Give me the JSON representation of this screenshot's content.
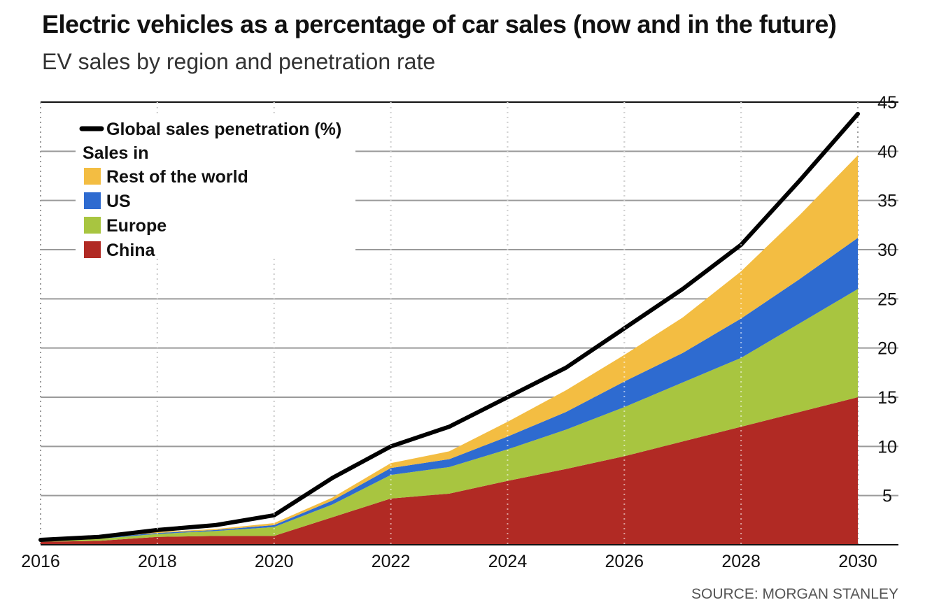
{
  "title": "Electric vehicles as a percentage of car sales (now and in the future)",
  "subtitle": "EV sales by region and penetration rate",
  "source": "SOURCE: MORGAN STANLEY",
  "chart_data": {
    "type": "area",
    "stacked": true,
    "x": [
      2016,
      2017,
      2018,
      2019,
      2020,
      2021,
      2022,
      2023,
      2024,
      2025,
      2026,
      2027,
      2028,
      2029,
      2030
    ],
    "xticks": [
      2016,
      2018,
      2020,
      2022,
      2024,
      2026,
      2028,
      2030
    ],
    "ylim": [
      0,
      45
    ],
    "yticks": [
      5,
      10,
      15,
      20,
      25,
      30,
      35,
      40,
      45
    ],
    "y_axis_position": "right",
    "grid": true,
    "legend_placement": "top-left",
    "legend_heading": "Sales in",
    "series": [
      {
        "name": "China",
        "color": "#b12a24",
        "values": [
          0.3,
          0.4,
          0.8,
          0.9,
          0.9,
          2.8,
          4.7,
          5.2,
          6.5,
          7.7,
          9.0,
          10.5,
          12.0,
          13.5,
          15.0
        ]
      },
      {
        "name": "Europe",
        "color": "#a8c540",
        "values": [
          0.1,
          0.2,
          0.3,
          0.5,
          0.9,
          1.3,
          2.4,
          2.7,
          3.2,
          4.0,
          5.0,
          6.0,
          7.0,
          9.0,
          11.0
        ]
      },
      {
        "name": "US",
        "color": "#2e6bd0",
        "values": [
          0.1,
          0.1,
          0.1,
          0.1,
          0.2,
          0.4,
          0.7,
          0.8,
          1.3,
          1.8,
          2.6,
          3.0,
          4.0,
          4.5,
          5.2
        ]
      },
      {
        "name": "Rest of the world",
        "color": "#f3bd42",
        "values": [
          0.0,
          0.0,
          0.1,
          0.1,
          0.2,
          0.3,
          0.5,
          0.8,
          1.5,
          2.2,
          2.7,
          3.6,
          4.8,
          6.5,
          8.4
        ]
      }
    ],
    "line": {
      "name": "Global sales penetration (%)",
      "color": "#000000",
      "values": [
        0.5,
        0.8,
        1.5,
        2.0,
        3.0,
        6.8,
        10.0,
        12.0,
        15.0,
        18.0,
        22.0,
        26.0,
        30.5,
        37.0,
        43.8
      ]
    }
  }
}
